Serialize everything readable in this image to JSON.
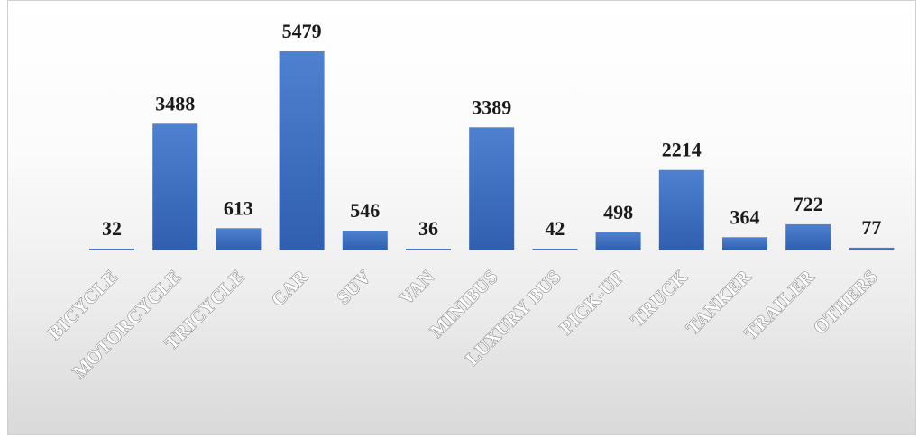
{
  "chart_data": {
    "type": "bar",
    "title": "",
    "xlabel": "",
    "ylabel": "",
    "categories": [
      "BICYCLE",
      "MOTORCYCLE",
      "TRICYCLE",
      "CAR",
      "SUV",
      "VAN",
      "MINIBUS",
      "LUXURY BUS",
      "PICK-UP",
      "TRUCK",
      "TANKER",
      "TRAILER",
      "OTHERS"
    ],
    "values": [
      32,
      3488,
      613,
      5479,
      546,
      36,
      3389,
      42,
      498,
      2214,
      364,
      722,
      77
    ],
    "ylim": [
      0,
      5479
    ],
    "grid": false,
    "legend": "none",
    "show_data_labels": true,
    "colors": {
      "bar_top": "#4f81d1",
      "bar_bottom": "#2f5fae",
      "data_label": "#1a1a1a",
      "category_label_fill": "#ffffff",
      "category_label_outline": "#7f7f7f",
      "background_top": "#ffffff",
      "background_bottom": "#d9d9d9"
    }
  }
}
